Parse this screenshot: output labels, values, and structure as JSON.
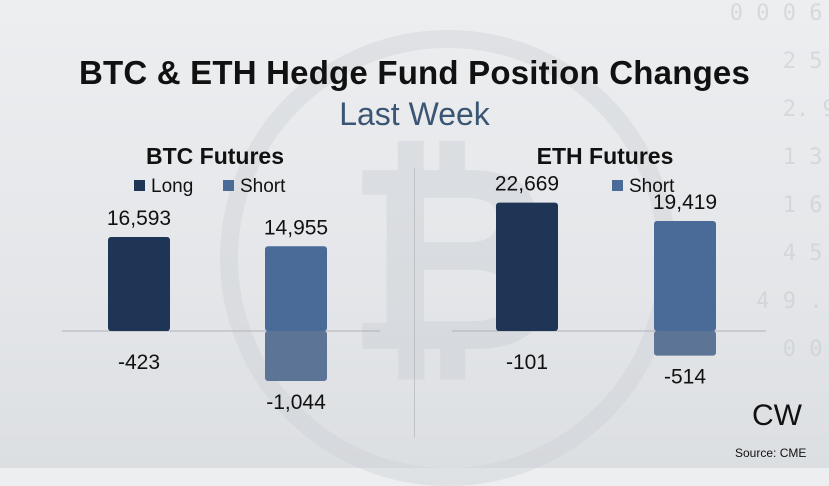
{
  "title": "BTC & ETH Hedge Fund Position Changes",
  "subtitle": "Last Week",
  "logo": "CW",
  "source": "Source: CME",
  "colors": {
    "long": "#1f3556",
    "short": "#4a6a97",
    "long_negative": "#3d5679",
    "short_negative": "#5c7496",
    "title_accent": "#3b5575"
  },
  "chart_data": [
    {
      "type": "bar",
      "title": "BTC Futures",
      "legend": [
        "Long",
        "Short"
      ],
      "series": [
        {
          "name": "Long",
          "values": [
            16593,
            -423
          ]
        },
        {
          "name": "Short",
          "values": [
            14955,
            -1044
          ]
        }
      ],
      "labels": {
        "long_positive": "16,593",
        "long_negative": "-423",
        "short_positive": "14,955",
        "short_negative": "-1,044"
      }
    },
    {
      "type": "bar",
      "title": "ETH Futures",
      "legend": [
        "Short"
      ],
      "series": [
        {
          "name": "Long",
          "values": [
            22669,
            -101
          ]
        },
        {
          "name": "Short",
          "values": [
            19419,
            -514
          ]
        }
      ],
      "labels": {
        "long_positive": "22,669",
        "long_negative": "-101",
        "short_positive": "19,419",
        "short_negative": "-514"
      }
    }
  ]
}
